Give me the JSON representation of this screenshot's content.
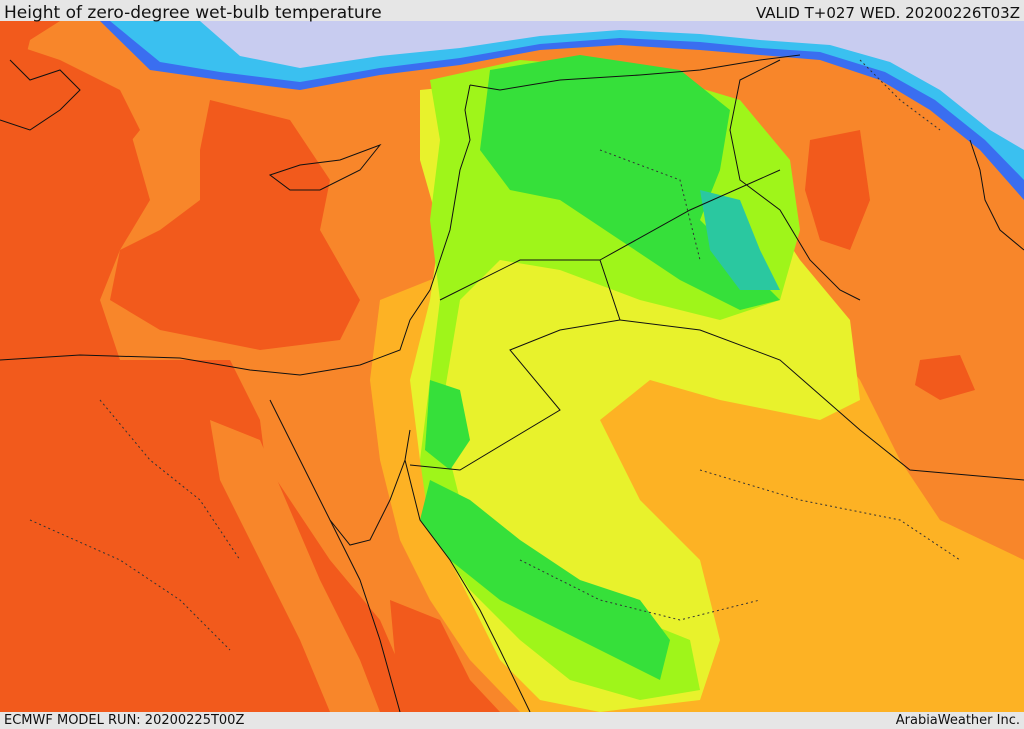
{
  "header": {
    "title": "Height of zero-degree wet-bulb temperature",
    "valid": "VALID T+027 WED. 20200226T03Z"
  },
  "footer": {
    "model_run": "ECMWF MODEL RUN: 20200225T00Z",
    "credit": "ArabiaWeather Inc."
  },
  "map": {
    "region": "Eastern Mediterranean and Middle East",
    "colors": {
      "red_orange": "#f25a1c",
      "orange": "#f8862a",
      "amber": "#fdb224",
      "yellow": "#e8f22c",
      "light_green": "#9ff51a",
      "green": "#36e03a",
      "teal": "#2ac8a0",
      "cyan": "#3ac0f0",
      "blue": "#3a6ef0",
      "lavender": "#c8ccf0"
    }
  }
}
